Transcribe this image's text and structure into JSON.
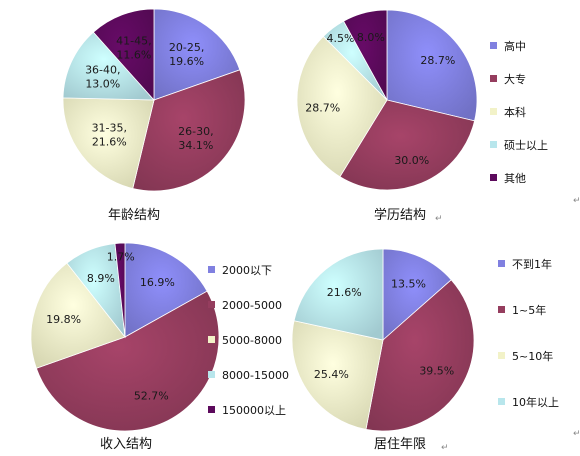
{
  "chart_data": [
    {
      "type": "pie",
      "title": "年龄结构",
      "categories": [
        "20-25",
        "26-30",
        "31-35",
        "36-40",
        "41-45"
      ],
      "values": [
        19.6,
        34.1,
        21.6,
        13.0,
        11.6
      ],
      "labels": [
        "20-25,\n19.6%",
        "26-30,\n34.1%",
        "31-35,\n21.6%",
        "36-40,\n13.0%",
        "41-45,\n11.6%"
      ],
      "colors": [
        "#8080e0",
        "#953d5e",
        "#f2f2c8",
        "#b8e6ec",
        "#5c0a5c"
      ],
      "legend": false
    },
    {
      "type": "pie",
      "title": "学历结构",
      "categories": [
        "高中",
        "大专",
        "本科",
        "硕士以上",
        "其他"
      ],
      "values": [
        28.7,
        30.0,
        28.7,
        4.5,
        8.0
      ],
      "labels": [
        "28.7%",
        "30.0%",
        "28.7%",
        "4.5%",
        "8.0%"
      ],
      "colors": [
        "#8080e0",
        "#953d5e",
        "#f2f2c8",
        "#b8e6ec",
        "#5c0a5c"
      ],
      "legend": true,
      "legend_placement": "right"
    },
    {
      "type": "pie",
      "title": "收入结构",
      "categories": [
        "2000以下",
        "2000-5000",
        "5000-8000",
        "8000-15000",
        "150000以上"
      ],
      "values": [
        16.9,
        52.7,
        19.8,
        8.9,
        1.7
      ],
      "labels": [
        "16.9%",
        "52.7%",
        "19.8%",
        "8.9%",
        "1.7%"
      ],
      "colors": [
        "#8080e0",
        "#953d5e",
        "#f2f2c8",
        "#b8e6ec",
        "#5c0a5c"
      ],
      "legend": true,
      "legend_placement": "right"
    },
    {
      "type": "pie",
      "title": "居住年限",
      "categories": [
        "不到1年",
        "1~5年",
        "5~10年",
        "10年以上"
      ],
      "values": [
        13.5,
        39.5,
        25.4,
        21.6
      ],
      "labels": [
        "13.5%",
        "39.5%",
        "25.4%",
        "21.6%"
      ],
      "colors": [
        "#8080e0",
        "#953d5e",
        "#f2f2c8",
        "#b8e6ec"
      ],
      "legend": true,
      "legend_placement": "right"
    }
  ]
}
